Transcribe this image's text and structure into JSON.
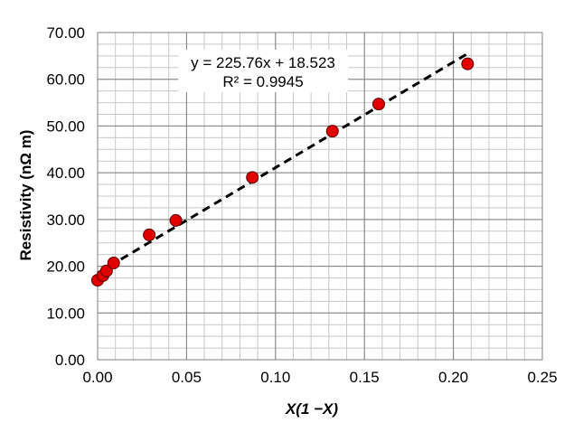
{
  "chart_data": {
    "type": "scatter",
    "xlabel": "X(1 −X)",
    "ylabel": "Resistivity (nΩ m)",
    "xlim": [
      0,
      0.25
    ],
    "ylim": [
      0,
      70
    ],
    "x_ticks": [
      "0.00",
      "0.05",
      "0.10",
      "0.15",
      "0.20",
      "0.25"
    ],
    "y_ticks": [
      "0.00",
      "10.00",
      "20.00",
      "30.00",
      "40.00",
      "50.00",
      "60.00",
      "70.00"
    ],
    "grid": true,
    "series": [
      {
        "marker_color": "#e00000",
        "points": [
          {
            "x": 0.0,
            "y": 17.0
          },
          {
            "x": 0.003,
            "y": 18.0
          },
          {
            "x": 0.005,
            "y": 19.0
          },
          {
            "x": 0.009,
            "y": 20.7
          },
          {
            "x": 0.029,
            "y": 26.7
          },
          {
            "x": 0.044,
            "y": 29.8
          },
          {
            "x": 0.087,
            "y": 39.0
          },
          {
            "x": 0.132,
            "y": 48.9
          },
          {
            "x": 0.158,
            "y": 54.7
          },
          {
            "x": 0.208,
            "y": 63.3
          }
        ]
      }
    ],
    "trendline": {
      "slope": 225.76,
      "intercept": 18.523,
      "x_range": [
        0,
        0.208
      ],
      "style": "dashed",
      "color": "#000000",
      "equation": "y = 225.76x + 18.523",
      "r_squared": "R² = 0.9945"
    }
  }
}
